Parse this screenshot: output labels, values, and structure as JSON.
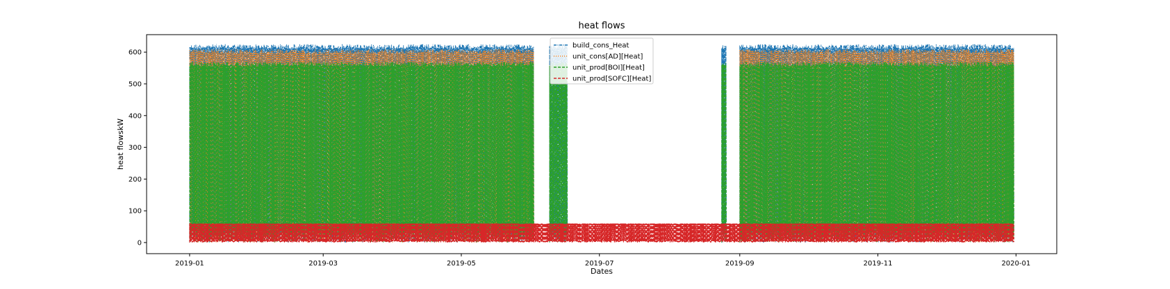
{
  "chart_data": {
    "type": "line",
    "title": "heat flows",
    "xlabel": "Dates",
    "ylabel": "heat flowskW",
    "x_tick_labels": [
      "2019-01",
      "2019-03",
      "2019-05",
      "2019-07",
      "2019-09",
      "2019-11",
      "2020-01"
    ],
    "x_ticks": [
      "2019-01-01",
      "2019-03-01",
      "2019-05-01",
      "2019-07-01",
      "2019-09-01",
      "2019-11-01",
      "2020-01-01"
    ],
    "xlim": [
      "2018-12-13",
      "2020-01-19"
    ],
    "y_ticks": [
      0,
      100,
      200,
      300,
      400,
      500,
      600
    ],
    "ylim": [
      -35,
      655
    ],
    "grid": false,
    "legend": "top-center",
    "series": [
      {
        "name": "build_cons_Heat",
        "color": "#1f77b4",
        "style": "dash-dot",
        "level_high": 625,
        "level_low": 0,
        "active_periods": [
          [
            "2019-01-01",
            "2019-06-02"
          ],
          [
            "2019-06-09",
            "2019-06-17"
          ],
          [
            "2019-08-24",
            "2019-08-26"
          ],
          [
            "2019-09-01",
            "2019-12-31"
          ]
        ]
      },
      {
        "name": "unit_cons[AD][Heat]",
        "color": "#ff7f0e",
        "style": "dotted",
        "level_high": 610,
        "level_low": 0,
        "active_periods": [
          [
            "2019-01-01",
            "2019-06-02"
          ],
          [
            "2019-09-01",
            "2019-12-31"
          ]
        ]
      },
      {
        "name": "unit_prod[BOI][Heat]",
        "color": "#2ca02c",
        "style": "dashed",
        "level_high": 570,
        "level_low": 0,
        "active_periods": [
          [
            "2019-01-01",
            "2019-06-02"
          ],
          [
            "2019-06-09",
            "2019-06-17"
          ],
          [
            "2019-08-24",
            "2019-08-26"
          ],
          [
            "2019-09-01",
            "2019-12-31"
          ]
        ]
      },
      {
        "name": "unit_prod[SOFC][Heat]",
        "color": "#d62728",
        "style": "dashed",
        "level_high": 60,
        "level_low": 0,
        "active_periods": [
          [
            "2019-01-01",
            "2019-12-31"
          ]
        ]
      }
    ]
  }
}
